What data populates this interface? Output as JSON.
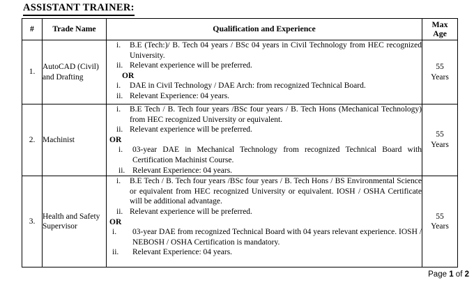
{
  "page": {
    "title": "ASSISTANT TRAINER:",
    "footer": {
      "prefix": "Page ",
      "page_number": "1",
      "separator": " of ",
      "total_pages": "2"
    }
  },
  "table": {
    "headers": {
      "num": "#",
      "trade": "Trade Name",
      "qual": "Qualification and Experience",
      "age": "Max\nAge"
    },
    "rows": [
      {
        "num": "1.",
        "trade": "AutoCAD (Civil) and Drafting",
        "age": "55\nYears",
        "qual": [
          {
            "marker": "i.",
            "text": "B.E (Tech:)/ B. Tech 04 years / BSc 04 years in Civil Technology from HEC recognized University."
          },
          {
            "marker": "ii.",
            "text": "Relevant experience will be preferred."
          },
          {
            "or": "OR"
          },
          {
            "marker": "i.",
            "text": "DAE in Civil Technology / DAE Arch: from recognized Technical Board."
          },
          {
            "marker": "ii.",
            "text": "Relevant Experience: 04 years."
          }
        ]
      },
      {
        "num": "2.",
        "trade": "Machinist",
        "age": "55\nYears",
        "qual": [
          {
            "marker": "i.",
            "text": "B.E Tech / B. Tech four years /BSc four years / B. Tech Hons (Mechanical Technology) from HEC recognized University or equivalent."
          },
          {
            "marker": "ii.",
            "text": "Relevant experience will be preferred."
          },
          {
            "or": "OR"
          },
          {
            "marker": "i.",
            "text": "03-year DAE in Mechanical Technology from recognized Technical Board with Certification Machinist Course."
          },
          {
            "marker": "ii.",
            "text": "Relevant Experience: 04 years."
          }
        ]
      },
      {
        "num": "3.",
        "trade": "Health and Safety Supervisor",
        "age": "55\nYears",
        "qual": [
          {
            "marker": "i.",
            "text": "B.E Tech / B. Tech four years /BSc four years / B. Tech Hons / BS Environmental Science or equivalent from HEC recognized University or equivalent. IOSH / OSHA Certificate will be additional advantage."
          },
          {
            "marker": "ii.",
            "text": "Relevant experience will be preferred."
          },
          {
            "or": "OR"
          },
          {
            "marker": "i.",
            "text": "03-year DAE from recognized Technical Board with 04 years relevant experience. IOSH / NEBOSH / OSHA Certification is mandatory."
          },
          {
            "marker": "ii.",
            "text": "Relevant Experience: 04 years."
          }
        ]
      }
    ]
  }
}
